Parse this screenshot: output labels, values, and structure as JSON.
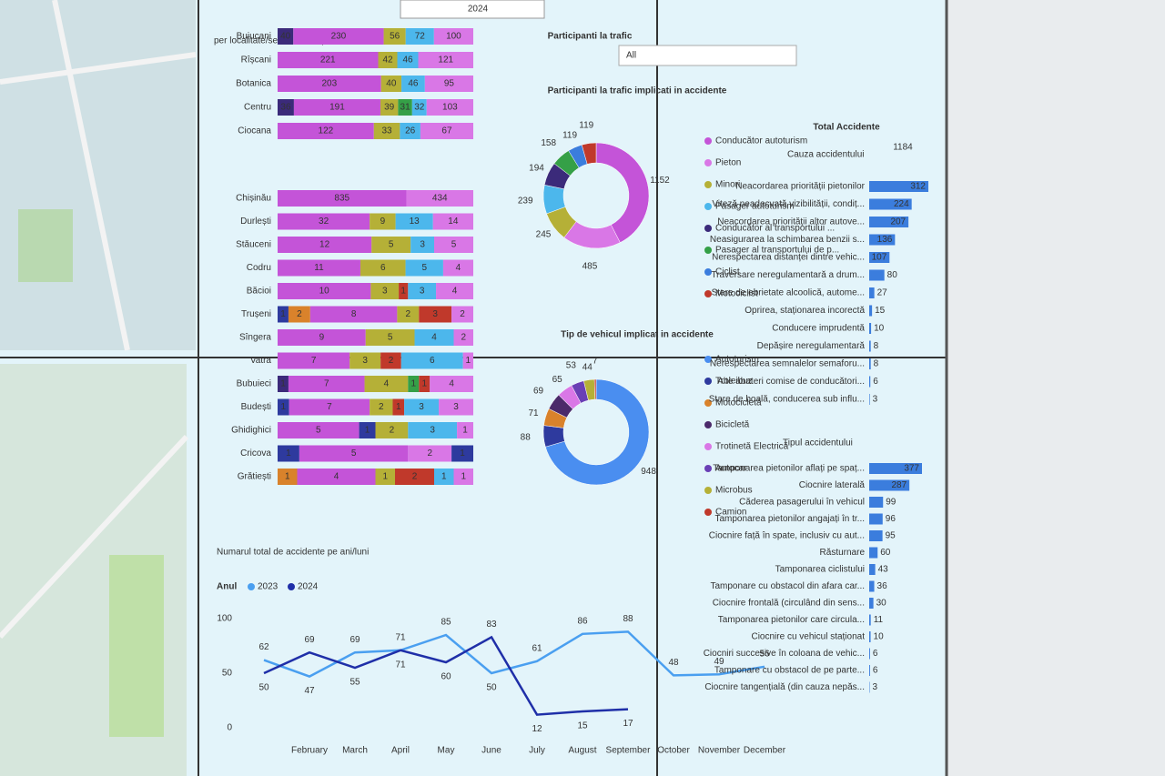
{
  "filters": {
    "year": "2024",
    "participants_label": "Participanti la trafic",
    "participants_value": "All"
  },
  "kpi": {
    "label": "Total Accidente",
    "value": 1184
  },
  "chart_data": [
    {
      "type": "stacked-bar-100",
      "title": "per localitate/sector municipal",
      "groups": [
        {
          "rows": [
            {
              "name": "Buiucani",
              "segments": [
                {
                  "value": 40,
                  "color": "#3b2a7a"
                },
                {
                  "value": 230,
                  "color": "#c454d8"
                },
                {
                  "value": 56,
                  "color": "#b5b037"
                },
                {
                  "value": 72,
                  "color": "#4cb7ec"
                },
                {
                  "value": 100,
                  "color": "#d977e6"
                }
              ]
            },
            {
              "name": "Rîșcani",
              "segments": [
                {
                  "value": 221,
                  "color": "#c454d8"
                },
                {
                  "value": 42,
                  "color": "#b5b037"
                },
                {
                  "value": 46,
                  "color": "#4cb7ec"
                },
                {
                  "value": 121,
                  "color": "#d977e6"
                }
              ]
            },
            {
              "name": "Botanica",
              "segments": [
                {
                  "value": 203,
                  "color": "#c454d8"
                },
                {
                  "value": 40,
                  "color": "#b5b037"
                },
                {
                  "value": 46,
                  "color": "#4cb7ec"
                },
                {
                  "value": 95,
                  "color": "#d977e6"
                }
              ]
            },
            {
              "name": "Centru",
              "segments": [
                {
                  "value": 36,
                  "color": "#3b2a7a"
                },
                {
                  "value": 191,
                  "color": "#c454d8"
                },
                {
                  "value": 39,
                  "color": "#b5b037"
                },
                {
                  "value": 31,
                  "color": "#35a047"
                },
                {
                  "value": 32,
                  "color": "#4cb7ec"
                },
                {
                  "value": 103,
                  "color": "#d977e6"
                }
              ]
            },
            {
              "name": "Ciocana",
              "segments": [
                {
                  "value": 122,
                  "color": "#c454d8"
                },
                {
                  "value": 33,
                  "color": "#b5b037"
                },
                {
                  "value": 26,
                  "color": "#4cb7ec"
                },
                {
                  "value": 67,
                  "color": "#d977e6"
                }
              ]
            }
          ]
        },
        {
          "rows": [
            {
              "name": "Chișinău",
              "segments": [
                {
                  "value": 835,
                  "color": "#c454d8"
                },
                {
                  "value": 434,
                  "color": "#d977e6"
                }
              ]
            },
            {
              "name": "Durlești",
              "segments": [
                {
                  "value": 32,
                  "color": "#c454d8"
                },
                {
                  "value": 9,
                  "color": "#b5b037"
                },
                {
                  "value": 13,
                  "color": "#4cb7ec"
                },
                {
                  "value": 14,
                  "color": "#d977e6"
                }
              ]
            },
            {
              "name": "Stăuceni",
              "segments": [
                {
                  "value": 12,
                  "color": "#c454d8"
                },
                {
                  "value": 5,
                  "color": "#b5b037"
                },
                {
                  "value": 3,
                  "color": "#4cb7ec"
                },
                {
                  "value": 5,
                  "color": "#d977e6"
                }
              ]
            },
            {
              "name": "Codru",
              "segments": [
                {
                  "value": 11,
                  "color": "#c454d8"
                },
                {
                  "value": 6,
                  "color": "#b5b037"
                },
                {
                  "value": 5,
                  "color": "#4cb7ec"
                },
                {
                  "value": 4,
                  "color": "#d977e6"
                }
              ]
            },
            {
              "name": "Băcioi",
              "segments": [
                {
                  "value": 10,
                  "color": "#c454d8"
                },
                {
                  "value": 3,
                  "color": "#b5b037"
                },
                {
                  "value": 1,
                  "color": "#c0392b"
                },
                {
                  "value": 3,
                  "color": "#4cb7ec"
                },
                {
                  "value": 4,
                  "color": "#d977e6"
                }
              ]
            },
            {
              "name": "Trușeni",
              "segments": [
                {
                  "value": 1,
                  "color": "#2e3a9e"
                },
                {
                  "value": 2,
                  "color": "#d9822b"
                },
                {
                  "value": 8,
                  "color": "#c454d8"
                },
                {
                  "value": 2,
                  "color": "#b5b037"
                },
                {
                  "value": 3,
                  "color": "#c0392b"
                },
                {
                  "value": 2,
                  "color": "#d977e6"
                }
              ]
            },
            {
              "name": "Sîngera",
              "segments": [
                {
                  "value": 9,
                  "color": "#c454d8"
                },
                {
                  "value": 5,
                  "color": "#b5b037"
                },
                {
                  "value": 4,
                  "color": "#4cb7ec"
                },
                {
                  "value": 2,
                  "color": "#d977e6"
                }
              ]
            },
            {
              "name": "Vatra",
              "segments": [
                {
                  "value": 7,
                  "color": "#c454d8"
                },
                {
                  "value": 3,
                  "color": "#b5b037"
                },
                {
                  "value": 2,
                  "color": "#c0392b"
                },
                {
                  "value": 6,
                  "color": "#4cb7ec"
                },
                {
                  "value": 1,
                  "color": "#d977e6"
                }
              ]
            },
            {
              "name": "Bubuieci",
              "segments": [
                {
                  "value": 1,
                  "color": "#3b2a7a"
                },
                {
                  "value": 7,
                  "color": "#c454d8"
                },
                {
                  "value": 4,
                  "color": "#b5b037"
                },
                {
                  "value": 1,
                  "color": "#35a047"
                },
                {
                  "value": 1,
                  "color": "#c0392b"
                },
                {
                  "value": 4,
                  "color": "#d977e6"
                }
              ]
            },
            {
              "name": "Budești",
              "segments": [
                {
                  "value": 1,
                  "color": "#2e3a9e"
                },
                {
                  "value": 7,
                  "color": "#c454d8"
                },
                {
                  "value": 2,
                  "color": "#b5b037"
                },
                {
                  "value": 1,
                  "color": "#c0392b"
                },
                {
                  "value": 3,
                  "color": "#4cb7ec"
                },
                {
                  "value": 3,
                  "color": "#d977e6"
                }
              ]
            },
            {
              "name": "Ghidighici",
              "segments": [
                {
                  "value": 5,
                  "color": "#c454d8"
                },
                {
                  "value": 1,
                  "color": "#2e3a9e"
                },
                {
                  "value": 2,
                  "color": "#b5b037"
                },
                {
                  "value": 3,
                  "color": "#4cb7ec"
                },
                {
                  "value": 1,
                  "color": "#d977e6"
                }
              ]
            },
            {
              "name": "Cricova",
              "segments": [
                {
                  "value": 1,
                  "color": "#2e3a9e"
                },
                {
                  "value": 5,
                  "color": "#c454d8"
                },
                {
                  "value": 2,
                  "color": "#d977e6"
                },
                {
                  "value": 1,
                  "color": "#2e3a9e"
                }
              ]
            },
            {
              "name": "Grătiești",
              "segments": [
                {
                  "value": 1,
                  "color": "#d9822b"
                },
                {
                  "value": 4,
                  "color": "#c454d8"
                },
                {
                  "value": 1,
                  "color": "#b5b037"
                },
                {
                  "value": 2,
                  "color": "#c0392b"
                },
                {
                  "value": 1,
                  "color": "#4cb7ec"
                },
                {
                  "value": 1,
                  "color": "#d977e6"
                }
              ]
            }
          ]
        }
      ]
    },
    {
      "type": "donut",
      "title": "Participanti la trafic implicati in accidente",
      "categories": [
        "Conducător autoturism",
        "Pieton",
        "Minori",
        "Pasager autoturism",
        "Conducător al transportului ...",
        "Pasager al transportului de p...",
        "Ciclist",
        "Motociclist"
      ],
      "values": [
        1152,
        485,
        245,
        239,
        194,
        158,
        119,
        119
      ],
      "colors": [
        "#c454d8",
        "#d977e6",
        "#b5b037",
        "#4cb7ec",
        "#3b2a7a",
        "#35a047",
        "#3b7ddd",
        "#c0392b"
      ]
    },
    {
      "type": "donut",
      "title": "Tip de vehicul implicat in accidente",
      "categories": [
        "Autoturism",
        "Troleibuz",
        "Motocicletă",
        "Bicicletă",
        "Trotinetă Electrică",
        "Autocar",
        "Microbus",
        "Camion"
      ],
      "values": [
        948,
        88,
        71,
        69,
        65,
        53,
        44,
        7
      ],
      "colors": [
        "#4a8ef0",
        "#2e3a9e",
        "#d9822b",
        "#4b2a6a",
        "#d977e6",
        "#6a3fb5",
        "#b5b037",
        "#c0392b"
      ]
    },
    {
      "type": "line",
      "title": "Numarul total de accidente pe ani/luni",
      "legend_title": "Anul",
      "categories": [
        null,
        "February",
        "March",
        "April",
        "May",
        "June",
        "July",
        "August",
        "September",
        "October",
        "November",
        "December"
      ],
      "series": [
        {
          "name": "2023",
          "color": "#4a9ff0",
          "values": [
            62,
            47,
            69,
            71,
            85,
            50,
            61,
            86,
            88,
            48,
            49,
            56
          ]
        },
        {
          "name": "2024",
          "color": "#1f2fa8",
          "values": [
            50,
            69,
            55,
            71,
            60,
            83,
            12,
            15,
            17,
            null,
            null,
            null
          ]
        }
      ],
      "ylim": [
        0,
        100
      ],
      "yticks": [
        0,
        50,
        100
      ]
    },
    {
      "type": "hbar",
      "title": "Cauza accidentului",
      "color": "#3b7ddd",
      "categories": [
        "Neacordarea priorității pietonilor",
        "Viteză neadecvată vizibilității, condiț...",
        "Neacordarea priorității altor autove...",
        "Neasigurarea la schimbarea benzii s...",
        "Nerespectarea distanței dintre vehic...",
        "Traversare neregulamentară a drum...",
        "Stare de ebrietate alcoolică, autome...",
        "Oprirea, staționarea incorectă",
        "Conducere imprudentă",
        "Depășire neregulamentară",
        "Nerespectarea semnalelor semaforu...",
        "Alte abateri comise de conducători...",
        "Stare de boală, conducerea sub influ..."
      ],
      "values": [
        312,
        224,
        207,
        136,
        107,
        80,
        27,
        15,
        10,
        8,
        8,
        6,
        3
      ]
    },
    {
      "type": "hbar",
      "title": "Tipul accidentului",
      "color": "#3b7ddd",
      "categories": [
        "Tamponarea pietonilor aflați pe spaț...",
        "Ciocnire laterală",
        "Căderea pasagerului în vehicul",
        "Tamponarea pietonilor angajați în tr...",
        "Ciocnire față în spate, inclusiv cu aut...",
        "Răsturnare",
        "Tamponarea ciclistului",
        "Tamponare cu obstacol din afara car...",
        "Ciocnire frontală (circulând din sens...",
        "Tamponarea pietonilor care circula...",
        "Ciocnire cu vehicul staționat",
        "Ciocniri succesive în coloana de vehic...",
        "Tamponare cu obstacol de pe parte...",
        "Ciocnire tangențială (din cauza nepăs..."
      ],
      "values": [
        377,
        287,
        99,
        96,
        95,
        60,
        43,
        36,
        30,
        11,
        10,
        6,
        6,
        3
      ]
    }
  ]
}
